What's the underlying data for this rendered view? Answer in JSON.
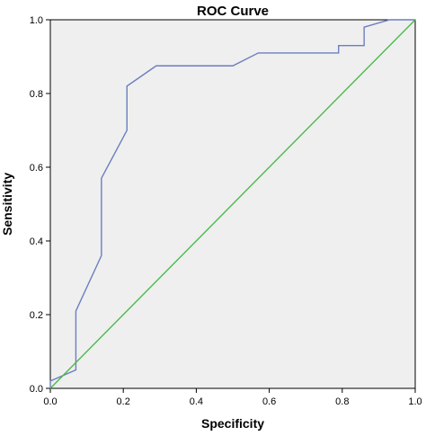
{
  "chart_data": {
    "type": "line",
    "title": "ROC Curve",
    "xlabel": "Specificity",
    "ylabel": "Sensitivity",
    "xlim": [
      0.0,
      1.0
    ],
    "ylim": [
      0.0,
      1.0
    ],
    "grid": false,
    "background_color": "#efefef",
    "xticks": [
      0.0,
      0.2,
      0.4,
      0.6,
      0.8,
      1.0
    ],
    "yticks": [
      0.0,
      0.2,
      0.4,
      0.6,
      0.8,
      1.0
    ],
    "xtick_labels": [
      "0.0",
      "0.2",
      "0.4",
      "0.6",
      "0.8",
      "1.0"
    ],
    "ytick_labels": [
      "0.0",
      "0.2",
      "0.4",
      "0.6",
      "0.8",
      "1.0"
    ],
    "series": [
      {
        "color": "#6b7fbf",
        "x": [
          0.0,
          0.0,
          0.07,
          0.07,
          0.14,
          0.14,
          0.21,
          0.21,
          0.29,
          0.5,
          0.57,
          0.79,
          0.79,
          0.86,
          0.86,
          0.93,
          1.0
        ],
        "y": [
          0.0,
          0.02,
          0.05,
          0.21,
          0.36,
          0.57,
          0.7,
          0.82,
          0.875,
          0.875,
          0.91,
          0.91,
          0.93,
          0.93,
          0.98,
          1.0,
          1.0
        ]
      },
      {
        "color": "#4cba4c",
        "x": [
          0.0,
          1.0
        ],
        "y": [
          0.0,
          1.0
        ]
      }
    ]
  }
}
